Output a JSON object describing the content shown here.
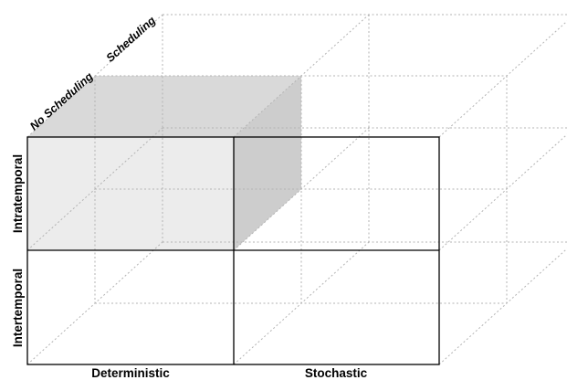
{
  "axes": {
    "horizontal": [
      "Deterministic",
      "Stochastic"
    ],
    "vertical": [
      "Intratemporal",
      "Intertemporal"
    ],
    "depth": [
      "No Scheduling",
      "Scheduling"
    ]
  },
  "colors": {
    "highlight_front": "#ececec",
    "highlight_top": "#d9d9d9",
    "highlight_side": "#cdcdcd",
    "grid_line": "#b3b3b3",
    "solid_line": "#000000"
  }
}
